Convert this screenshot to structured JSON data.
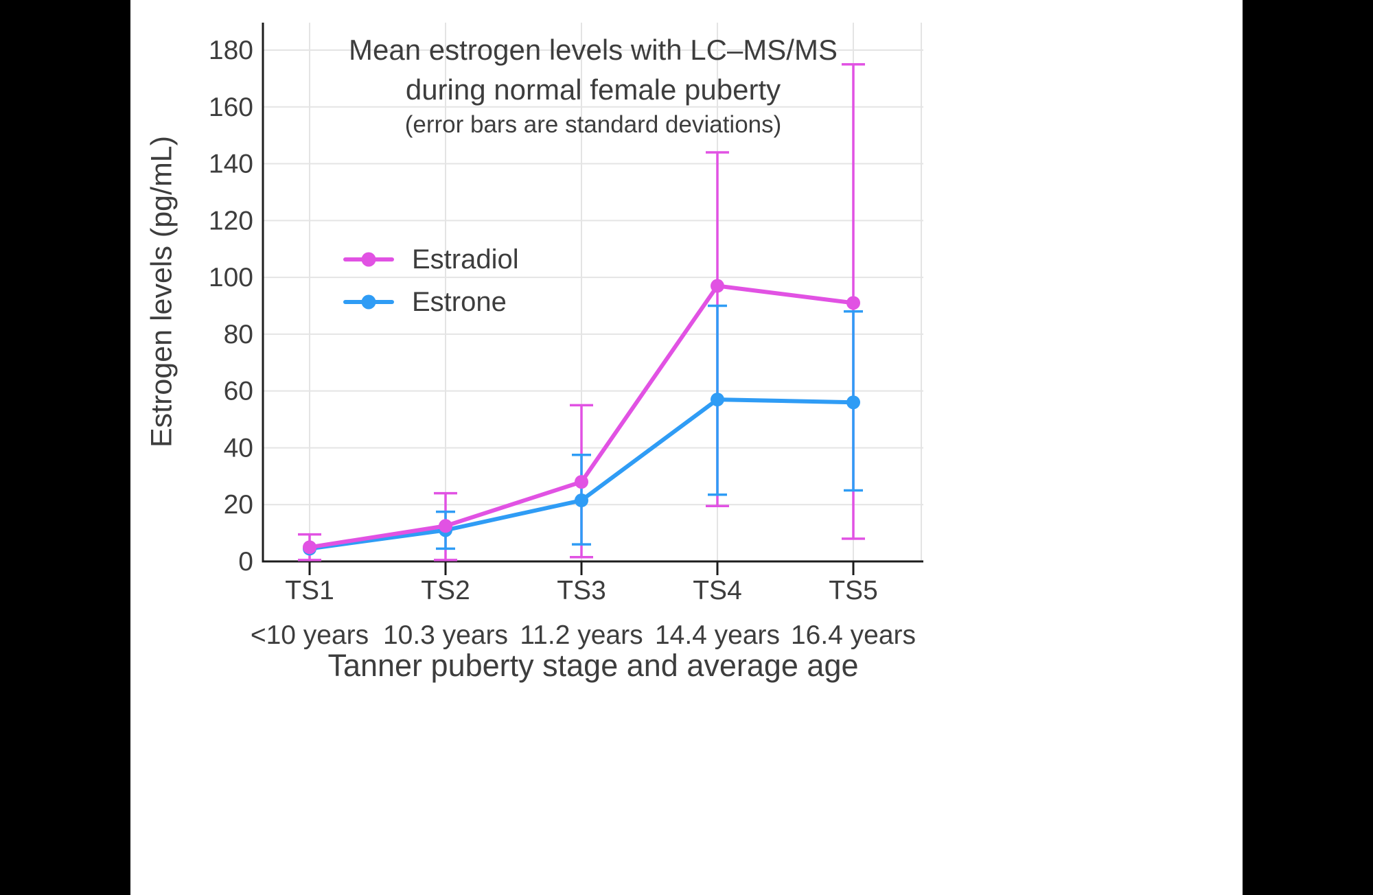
{
  "page": {
    "background": "#000000",
    "panel_background": "#ffffff"
  },
  "chart_data": {
    "type": "line",
    "title_line1": "Mean estrogen levels with LC–MS/MS",
    "title_line2": "during normal female puberty",
    "subtitle": "(error bars are standard deviations)",
    "xlabel": "Tanner puberty stage and average age",
    "ylabel": "Estrogen levels (pg/mL)",
    "legend_position": "inside-upper-left",
    "grid": true,
    "ylim": [
      0,
      190
    ],
    "yticks": [
      0,
      20,
      40,
      60,
      80,
      100,
      120,
      140,
      160,
      180
    ],
    "categories": [
      {
        "stage": "TS1",
        "age": "<10 years"
      },
      {
        "stage": "TS2",
        "age": "10.3 years"
      },
      {
        "stage": "TS3",
        "age": "11.2 years"
      },
      {
        "stage": "TS4",
        "age": "14.4 years"
      },
      {
        "stage": "TS5",
        "age": "16.4 years"
      }
    ],
    "series": [
      {
        "name": "Estradiol",
        "color": "#e152e3",
        "values": [
          5,
          12.5,
          28,
          97,
          91
        ],
        "err_lo": [
          0.5,
          0.5,
          1.5,
          19.5,
          8
        ],
        "err_hi": [
          9.5,
          24,
          55,
          144,
          175
        ]
      },
      {
        "name": "Estrone",
        "color": "#2f9cf5",
        "values": [
          4.5,
          11,
          21.5,
          57,
          56
        ],
        "err_lo": [
          null,
          4.5,
          6,
          23.5,
          25
        ],
        "err_hi": [
          null,
          17.5,
          37.5,
          90,
          88
        ]
      }
    ],
    "colors": {
      "grid": "#e4e4e4",
      "axis": "#1c1c1c",
      "text": "#3d3d3d"
    }
  }
}
